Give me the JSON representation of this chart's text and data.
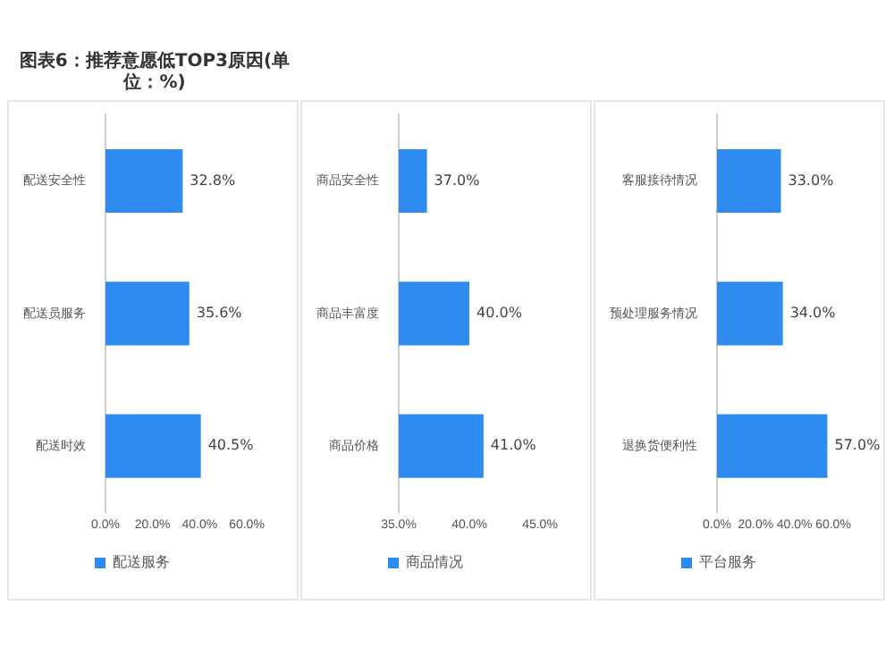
{
  "chart_data": [
    {
      "type": "bar",
      "orientation": "horizontal",
      "title": "图表6：推荐意愿低TOP3原因(单位：%)",
      "categories": [
        "配送安全性",
        "配送员服务",
        "配送时效"
      ],
      "series": [
        {
          "name": "配送服务",
          "color": "#2e8bef",
          "values": [
            32.8,
            35.6,
            40.5
          ],
          "value_labels": [
            "32.8%",
            "35.6%",
            "40.5%"
          ]
        }
      ],
      "xlim": [
        0,
        60
      ],
      "xticks": [
        {
          "value": 0,
          "label": "0.0%"
        },
        {
          "value": 20,
          "label": "20.0%"
        },
        {
          "value": 40,
          "label": "40.0%"
        },
        {
          "value": 60,
          "label": "60.0%"
        }
      ],
      "legend": "bottom"
    },
    {
      "type": "bar",
      "orientation": "horizontal",
      "categories": [
        "商品安全性",
        "商品丰富度",
        "商品价格"
      ],
      "series": [
        {
          "name": "商品情况",
          "color": "#2e8bef",
          "values": [
            37.0,
            40.0,
            41.0
          ],
          "value_labels": [
            "37.0%",
            "40.0%",
            "41.0%"
          ]
        }
      ],
      "xlim": [
        35,
        45
      ],
      "xticks": [
        {
          "value": 35,
          "label": "35.0%"
        },
        {
          "value": 40,
          "label": "40.0%"
        },
        {
          "value": 45,
          "label": "45.0%"
        }
      ],
      "legend": "bottom"
    },
    {
      "type": "bar",
      "orientation": "horizontal",
      "categories": [
        "客服接待情况",
        "预处理服务情况",
        "退换货便利性"
      ],
      "series": [
        {
          "name": "平台服务",
          "color": "#2e8bef",
          "values": [
            33.0,
            34.0,
            57.0
          ],
          "value_labels": [
            "33.0%",
            "34.0%",
            "57.0%"
          ]
        }
      ],
      "xlim": [
        0,
        60
      ],
      "xticks": [
        {
          "value": 0,
          "label": "0.0%"
        },
        {
          "value": 20,
          "label": "20.0%"
        },
        {
          "value": 40,
          "label": "40.0%"
        },
        {
          "value": 60,
          "label": "60.0%"
        }
      ],
      "legend": "bottom"
    }
  ]
}
